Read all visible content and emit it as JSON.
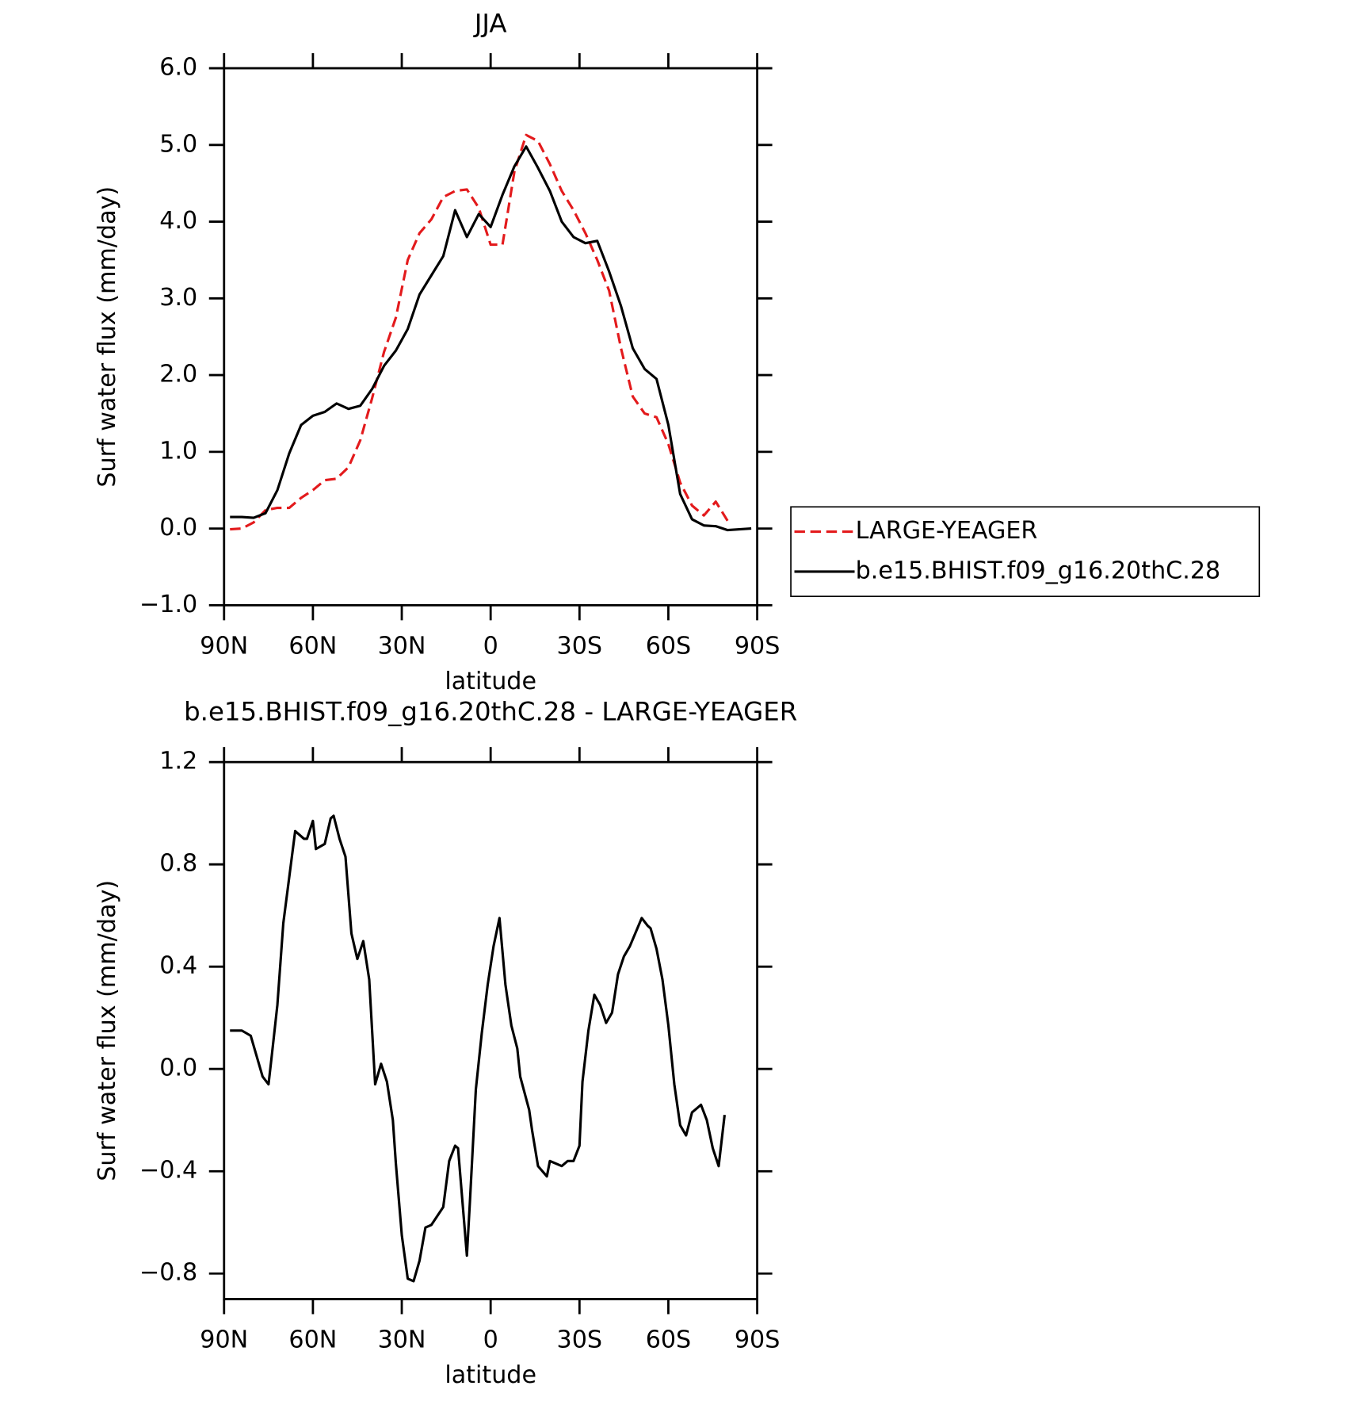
{
  "chart_data": [
    {
      "type": "line",
      "title": "JJA",
      "xlabel": "latitude",
      "ylabel": "Surf water flux (mm/day)",
      "x": [
        88,
        84,
        80,
        76,
        72,
        68,
        64,
        60,
        56,
        52,
        48,
        44,
        40,
        36,
        32,
        28,
        24,
        20,
        16,
        12,
        8,
        4,
        0,
        -4,
        -8,
        -12,
        -16,
        -20,
        -24,
        -28,
        -32,
        -36,
        -40,
        -44,
        -48,
        -52,
        -56,
        -60,
        -64,
        -68,
        -72,
        -76,
        -80,
        -84,
        -88
      ],
      "series": [
        {
          "name": "LARGE-YEAGER",
          "color": "#e31a1c",
          "dash": true,
          "values": [
            -0.01,
            0.0,
            0.08,
            0.24,
            0.27,
            0.27,
            0.4,
            0.5,
            0.63,
            0.65,
            0.8,
            1.15,
            1.7,
            2.3,
            2.75,
            3.5,
            3.85,
            4.03,
            4.32,
            4.4,
            4.42,
            4.18,
            3.7,
            3.7,
            4.65,
            5.13,
            5.05,
            4.75,
            4.4,
            4.15,
            3.85,
            3.5,
            3.1,
            2.35,
            1.72,
            1.5,
            1.45,
            1.1,
            0.6,
            0.3,
            0.17,
            0.35,
            0.1,
            null,
            null
          ]
        },
        {
          "name": "b.e15.BHIST.f09_g16.20thC.28",
          "color": "#000000",
          "dash": false,
          "values": [
            0.15,
            0.15,
            0.14,
            0.2,
            0.5,
            0.98,
            1.35,
            1.47,
            1.52,
            1.63,
            1.56,
            1.6,
            1.82,
            2.12,
            2.32,
            2.6,
            3.05,
            3.3,
            3.55,
            4.15,
            3.8,
            4.1,
            3.93,
            4.35,
            4.72,
            4.98,
            4.7,
            4.4,
            4.0,
            3.8,
            3.72,
            3.75,
            3.35,
            2.9,
            2.35,
            2.08,
            1.95,
            1.35,
            0.45,
            0.12,
            0.04,
            0.03,
            -0.02,
            -0.01,
            0.0
          ]
        }
      ],
      "xlim": [
        90,
        -90
      ],
      "xticks": [
        {
          "value": 90,
          "label": "90N"
        },
        {
          "value": 60,
          "label": "60N"
        },
        {
          "value": 30,
          "label": "30N"
        },
        0,
        {
          "value": -30,
          "label": "30S"
        },
        {
          "value": -60,
          "label": "60S"
        },
        {
          "value": -90,
          "label": "90S"
        }
      ],
      "ylim": [
        -1,
        6
      ],
      "yticks": [
        {
          "value": 6,
          "label": "6.0"
        },
        {
          "value": 5,
          "label": "5.0"
        },
        {
          "value": 4,
          "label": "4.0"
        },
        {
          "value": 3,
          "label": "3.0"
        },
        {
          "value": 2,
          "label": "2.0"
        },
        {
          "value": 1,
          "label": "1.0"
        },
        {
          "value": 0,
          "label": "0.0"
        },
        {
          "value": -1,
          "label": "−1.0"
        }
      ],
      "legend": "outside-right"
    },
    {
      "type": "line",
      "title": "b.e15.BHIST.f09_g16.20thC.28 - LARGE-YEAGER",
      "xlabel": "latitude",
      "ylabel": "Surf water flux (mm/day)",
      "x": [
        88,
        84,
        81,
        77,
        75,
        74,
        72,
        70,
        66,
        63,
        62,
        60,
        59,
        56,
        54,
        53,
        51,
        49,
        47,
        45,
        43,
        41,
        39,
        37,
        35,
        33,
        32,
        30,
        28,
        26,
        24,
        22,
        20,
        16,
        14,
        12,
        11,
        8,
        7,
        5,
        3,
        1,
        -1,
        -3,
        -5,
        -7,
        -9,
        -10,
        -13,
        -14,
        -16,
        -19,
        -20,
        -24,
        -26,
        -28,
        -30,
        -31,
        -33,
        -35,
        -37,
        -39,
        -41,
        -43,
        -45,
        -47,
        -51,
        -53,
        -54,
        -56,
        -58,
        -60,
        -62,
        -64,
        -66,
        -68,
        -69,
        -71,
        -73,
        -75,
        -77,
        -79
      ],
      "values": [
        0.15,
        0.15,
        0.13,
        -0.03,
        -0.06,
        0.04,
        0.25,
        0.57,
        0.93,
        0.9,
        0.9,
        0.97,
        0.86,
        0.88,
        0.98,
        0.99,
        0.9,
        0.83,
        0.53,
        0.43,
        0.5,
        0.35,
        -0.06,
        0.02,
        -0.05,
        -0.2,
        -0.37,
        -0.65,
        -0.82,
        -0.83,
        -0.75,
        -0.62,
        -0.61,
        -0.54,
        -0.36,
        -0.3,
        -0.31,
        -0.73,
        -0.52,
        -0.08,
        0.14,
        0.33,
        0.48,
        0.59,
        0.33,
        0.17,
        0.08,
        -0.03,
        -0.16,
        -0.24,
        -0.38,
        -0.42,
        -0.36,
        -0.38,
        -0.36,
        -0.36,
        -0.3,
        -0.05,
        0.15,
        0.29,
        0.25,
        0.18,
        0.22,
        0.37,
        0.44,
        0.48,
        0.59,
        0.56,
        0.55,
        0.47,
        0.35,
        0.17,
        -0.06,
        -0.22,
        -0.26,
        -0.17,
        -0.16,
        -0.14,
        -0.2,
        -0.31,
        -0.38,
        -0.18
      ],
      "color": "#000000",
      "xlim": [
        90,
        -90
      ],
      "xticks": [
        {
          "value": 90,
          "label": "90N"
        },
        {
          "value": 60,
          "label": "60N"
        },
        {
          "value": 30,
          "label": "30N"
        },
        0,
        {
          "value": -30,
          "label": "30S"
        },
        {
          "value": -60,
          "label": "60S"
        },
        {
          "value": -90,
          "label": "90S"
        }
      ],
      "ylim": [
        -0.9,
        1.2
      ],
      "yticks": [
        {
          "value": 1.2,
          "label": "1.2"
        },
        {
          "value": 0.8,
          "label": "0.8"
        },
        {
          "value": 0.4,
          "label": "0.4"
        },
        {
          "value": 0,
          "label": "0.0"
        },
        {
          "value": -0.4,
          "label": "−0.4"
        },
        {
          "value": -0.8,
          "label": "−0.8"
        }
      ]
    }
  ]
}
